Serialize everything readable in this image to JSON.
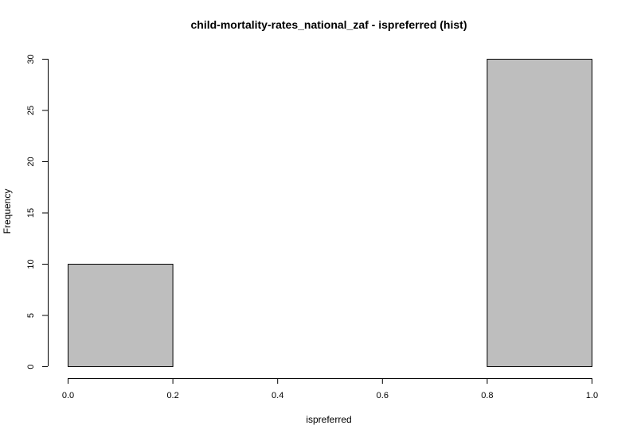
{
  "chart_data": {
    "type": "bar",
    "title": "child-mortality-rates_national_zaf - ispreferred (hist)",
    "xlabel": "ispreferred",
    "ylabel": "Frequency",
    "bins": [
      {
        "start": 0.0,
        "end": 0.2,
        "count": 10
      },
      {
        "start": 0.2,
        "end": 0.4,
        "count": 0
      },
      {
        "start": 0.4,
        "end": 0.6,
        "count": 0
      },
      {
        "start": 0.6,
        "end": 0.8,
        "count": 0
      },
      {
        "start": 0.8,
        "end": 1.0,
        "count": 30
      }
    ],
    "xlim": [
      0.0,
      1.0
    ],
    "ylim": [
      0,
      30
    ],
    "x_ticks": [
      0.0,
      0.2,
      0.4,
      0.6,
      0.8,
      1.0
    ],
    "x_tick_labels": [
      "0.0",
      "0.2",
      "0.4",
      "0.6",
      "0.8",
      "1.0"
    ],
    "y_ticks": [
      0,
      5,
      10,
      15,
      20,
      25,
      30
    ],
    "y_tick_labels": [
      "0",
      "5",
      "10",
      "15",
      "20",
      "25",
      "30"
    ],
    "bar_color": "#bebebe",
    "bar_border_color": "#000000",
    "grid": false
  }
}
